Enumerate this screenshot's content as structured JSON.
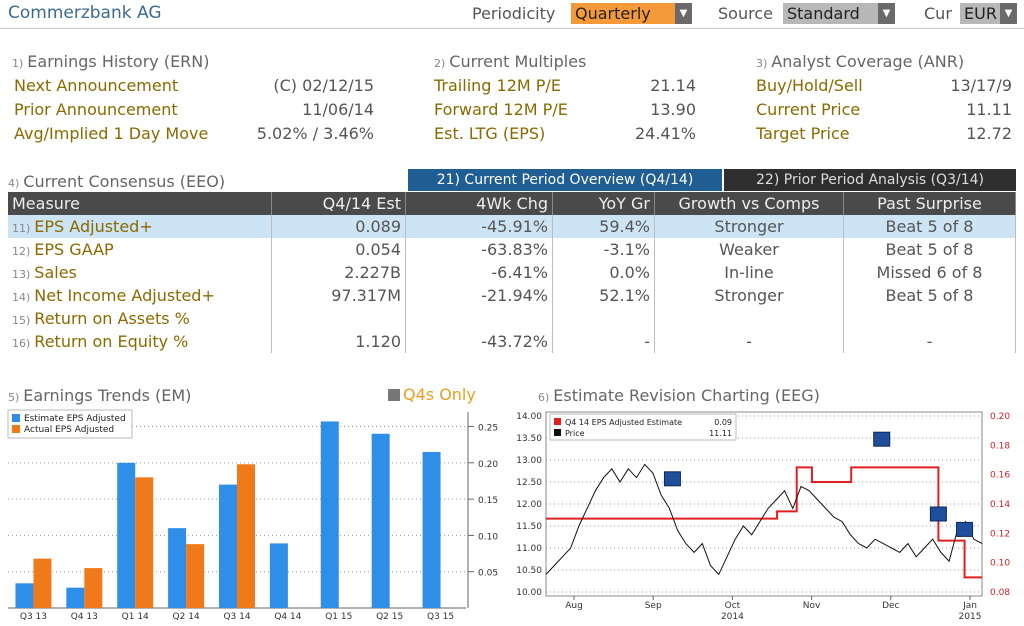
{
  "header": {
    "company": "Commerzbank AG",
    "periodicity_label": "Periodicity",
    "periodicity_value": "Quarterly",
    "source_label": "Source",
    "source_value": "Standard",
    "cur_label": "Cur",
    "cur_value": "EUR"
  },
  "earnings_history": {
    "num": "1)",
    "title": "Earnings History (ERN)",
    "rows": [
      {
        "label": "Next Announcement",
        "value": "(C)  02/12/15"
      },
      {
        "label": "Prior Announcement",
        "value": "11/06/14"
      },
      {
        "label": "Avg/Implied 1 Day Move",
        "value": "5.02% / 3.46%"
      }
    ]
  },
  "current_multiples": {
    "num": "2)",
    "title": "Current Multiples",
    "rows": [
      {
        "label": "Trailing 12M P/E",
        "value": "21.14"
      },
      {
        "label": "Forward 12M P/E",
        "value": "13.90"
      },
      {
        "label": "Est. LTG (EPS)",
        "value": "24.41%"
      }
    ]
  },
  "analyst_coverage": {
    "num": "3)",
    "title": "Analyst Coverage (ANR)",
    "rows": [
      {
        "label": "Buy/Hold/Sell",
        "value": "13/17/9"
      },
      {
        "label": "Current Price",
        "value": "11.11"
      },
      {
        "label": "Target Price",
        "value": "12.72"
      }
    ]
  },
  "consensus": {
    "num": "4)",
    "title": "Current Consensus (EEO)",
    "tab_current": "21) Current Period Overview (Q4/14)",
    "tab_prior": "22) Prior Period Analysis (Q3/14)",
    "columns": [
      "Measure",
      "Q4/14 Est",
      "4Wk Chg",
      "YoY Gr",
      "Growth vs Comps",
      "Past Surprise"
    ],
    "rows": [
      {
        "num": "11)",
        "measure": "EPS Adjusted+",
        "est": "0.089",
        "chg": "-45.91%",
        "yoy": "59.4%",
        "comps": "Stronger",
        "surprise": "Beat 5 of 8"
      },
      {
        "num": "12)",
        "measure": "EPS GAAP",
        "est": "0.054",
        "chg": "-63.83%",
        "yoy": "-3.1%",
        "comps": "Weaker",
        "surprise": "Beat 5 of 8"
      },
      {
        "num": "13)",
        "measure": "Sales",
        "est": "2.227B",
        "chg": "-6.41%",
        "yoy": "0.0%",
        "comps": "In-line",
        "surprise": "Missed 6 of 8"
      },
      {
        "num": "14)",
        "measure": "Net Income Adjusted+",
        "est": "97.317M",
        "chg": "-21.94%",
        "yoy": "52.1%",
        "comps": "Stronger",
        "surprise": "Beat 5 of 8"
      },
      {
        "num": "15)",
        "measure": "Return on Assets %",
        "est": "",
        "chg": "",
        "yoy": "",
        "comps": "",
        "surprise": ""
      },
      {
        "num": "16)",
        "measure": "Return on Equity %",
        "est": "1.120",
        "chg": "-43.72%",
        "yoy": "-",
        "comps": "-",
        "surprise": "-"
      }
    ]
  },
  "earnings_trends": {
    "num": "5)",
    "title": "Earnings Trends (EM)",
    "q4s_only": "Q4s Only"
  },
  "estimate_revision": {
    "num": "6)",
    "title": "Estimate Revision Charting (EEG)"
  },
  "chart_data": [
    {
      "type": "bar",
      "categories": [
        "Q3 13",
        "Q4 13",
        "Q1 14",
        "Q2 14",
        "Q3 14",
        "Q4 14",
        "Q1 15",
        "Q2 15",
        "Q3 15"
      ],
      "series": [
        {
          "name": "Estimate EPS Adjusted",
          "color": "#2f8fe8",
          "values": [
            0.034,
            0.028,
            0.2,
            0.11,
            0.17,
            0.089,
            0.257,
            0.24,
            0.215
          ]
        },
        {
          "name": "Actual EPS Adjusted",
          "color": "#f07a1a",
          "values": [
            0.068,
            0.055,
            0.18,
            0.088,
            0.198,
            null,
            null,
            null,
            null
          ]
        }
      ],
      "yticks": [
        "0.05",
        "0.10",
        "0.15",
        "0.20",
        "0.25"
      ],
      "ylim": [
        0,
        0.27
      ],
      "legend": "top-left",
      "grid": true
    },
    {
      "type": "line",
      "legend": [
        {
          "name": "Q4 14 EPS Adjusted Estimate",
          "value": "0.09",
          "color": "#e02020"
        },
        {
          "name": "Price",
          "value": "11.11",
          "color": "#111111"
        }
      ],
      "left_ticks": [
        "10.00",
        "10.50",
        "11.00",
        "11.50",
        "12.00",
        "12.50",
        "13.00",
        "13.50",
        "14.00"
      ],
      "right_ticks": [
        "0.08",
        "0.10",
        "0.12",
        "0.14",
        "0.16",
        "0.18",
        "0.20"
      ],
      "x_labels": [
        {
          "m": "Aug",
          "y": ""
        },
        {
          "m": "Sep",
          "y": ""
        },
        {
          "m": "Oct",
          "y": "2014"
        },
        {
          "m": "Nov",
          "y": ""
        },
        {
          "m": "Dec",
          "y": ""
        },
        {
          "m": "Jan",
          "y": "2015"
        }
      ],
      "price": [
        10.4,
        10.6,
        10.8,
        11.0,
        11.5,
        11.9,
        12.3,
        12.6,
        12.8,
        12.5,
        12.8,
        12.6,
        12.9,
        12.7,
        12.2,
        11.9,
        11.4,
        11.1,
        10.9,
        11.1,
        10.6,
        10.4,
        10.8,
        11.2,
        11.5,
        11.3,
        11.6,
        11.9,
        12.1,
        12.3,
        11.9,
        12.4,
        12.3,
        12.1,
        11.9,
        11.7,
        11.6,
        11.3,
        11.1,
        11.0,
        11.2,
        11.1,
        11.0,
        10.9,
        11.1,
        10.8,
        11.0,
        11.2,
        10.9,
        10.7,
        11.4,
        11.6,
        11.2,
        11.1
      ],
      "estimate": [
        {
          "from": 0,
          "to": 0.53,
          "v": 0.13
        },
        {
          "from": 0.53,
          "to": 0.575,
          "v": 0.135
        },
        {
          "from": 0.575,
          "to": 0.61,
          "v": 0.165
        },
        {
          "from": 0.61,
          "to": 0.7,
          "v": 0.155
        },
        {
          "from": 0.7,
          "to": 0.9,
          "v": 0.165
        },
        {
          "from": 0.9,
          "to": 0.96,
          "v": 0.115
        },
        {
          "from": 0.96,
          "to": 1.0,
          "v": 0.09
        }
      ]
    }
  ]
}
